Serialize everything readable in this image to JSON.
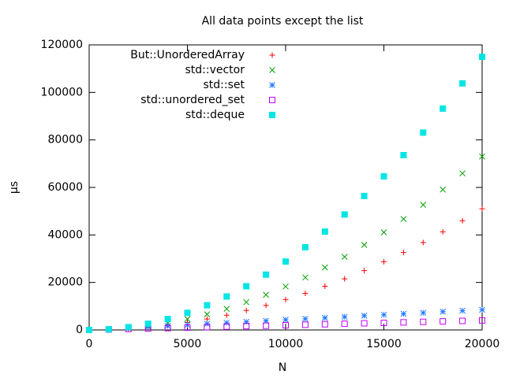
{
  "chart_data": {
    "type": "scatter",
    "title": "All data points except the list",
    "xlabel": "N",
    "ylabel": "µs",
    "x": [
      0,
      1000,
      2000,
      3000,
      4000,
      5000,
      6000,
      7000,
      8000,
      9000,
      10000,
      11000,
      12000,
      13000,
      14000,
      15000,
      16000,
      17000,
      18000,
      19000,
      20000
    ],
    "series": [
      {
        "name": "But::UnorderedArray",
        "color": "#ff0000",
        "marker": "plus",
        "values": [
          0,
          100,
          500,
          1100,
          2000,
          3200,
          4600,
          6200,
          8200,
          10300,
          12800,
          15400,
          18400,
          21500,
          25000,
          28700,
          32600,
          36800,
          41300,
          46000,
          51000
        ]
      },
      {
        "name": "std::vector",
        "color": "#00a000",
        "marker": "cross",
        "values": [
          0,
          200,
          700,
          1600,
          2900,
          4600,
          6600,
          8900,
          11700,
          14800,
          18300,
          22100,
          26300,
          30800,
          35800,
          41100,
          46700,
          52700,
          59100,
          65900,
          73000
        ]
      },
      {
        "name": "std::set",
        "color": "#1e78ff",
        "marker": "star",
        "values": [
          0,
          400,
          900,
          1300,
          1700,
          2100,
          2600,
          3000,
          3400,
          3800,
          4300,
          4700,
          5100,
          5500,
          6000,
          6400,
          6800,
          7200,
          7700,
          8100,
          8500
        ]
      },
      {
        "name": "std::unordered_set",
        "color": "#c000ff",
        "marker": "open-square",
        "values": [
          0,
          200,
          400,
          600,
          800,
          1000,
          1200,
          1400,
          1600,
          1800,
          2000,
          2200,
          2400,
          2600,
          2800,
          3000,
          3200,
          3400,
          3600,
          3800,
          4000
        ]
      },
      {
        "name": "std::deque",
        "color": "#00e5e5",
        "marker": "filled-square",
        "values": [
          0,
          300,
          1200,
          2600,
          4600,
          7200,
          10400,
          14100,
          18400,
          23300,
          28800,
          34800,
          41400,
          48600,
          56400,
          64700,
          73600,
          83100,
          93200,
          103800,
          115000
        ]
      }
    ],
    "xlim": [
      0,
      20000
    ],
    "ylim": [
      0,
      120000
    ],
    "xticks": [
      0,
      5000,
      10000,
      15000,
      20000
    ],
    "yticks": [
      0,
      20000,
      40000,
      60000,
      80000,
      100000,
      120000
    ],
    "grid": false,
    "legend": "top-left"
  }
}
